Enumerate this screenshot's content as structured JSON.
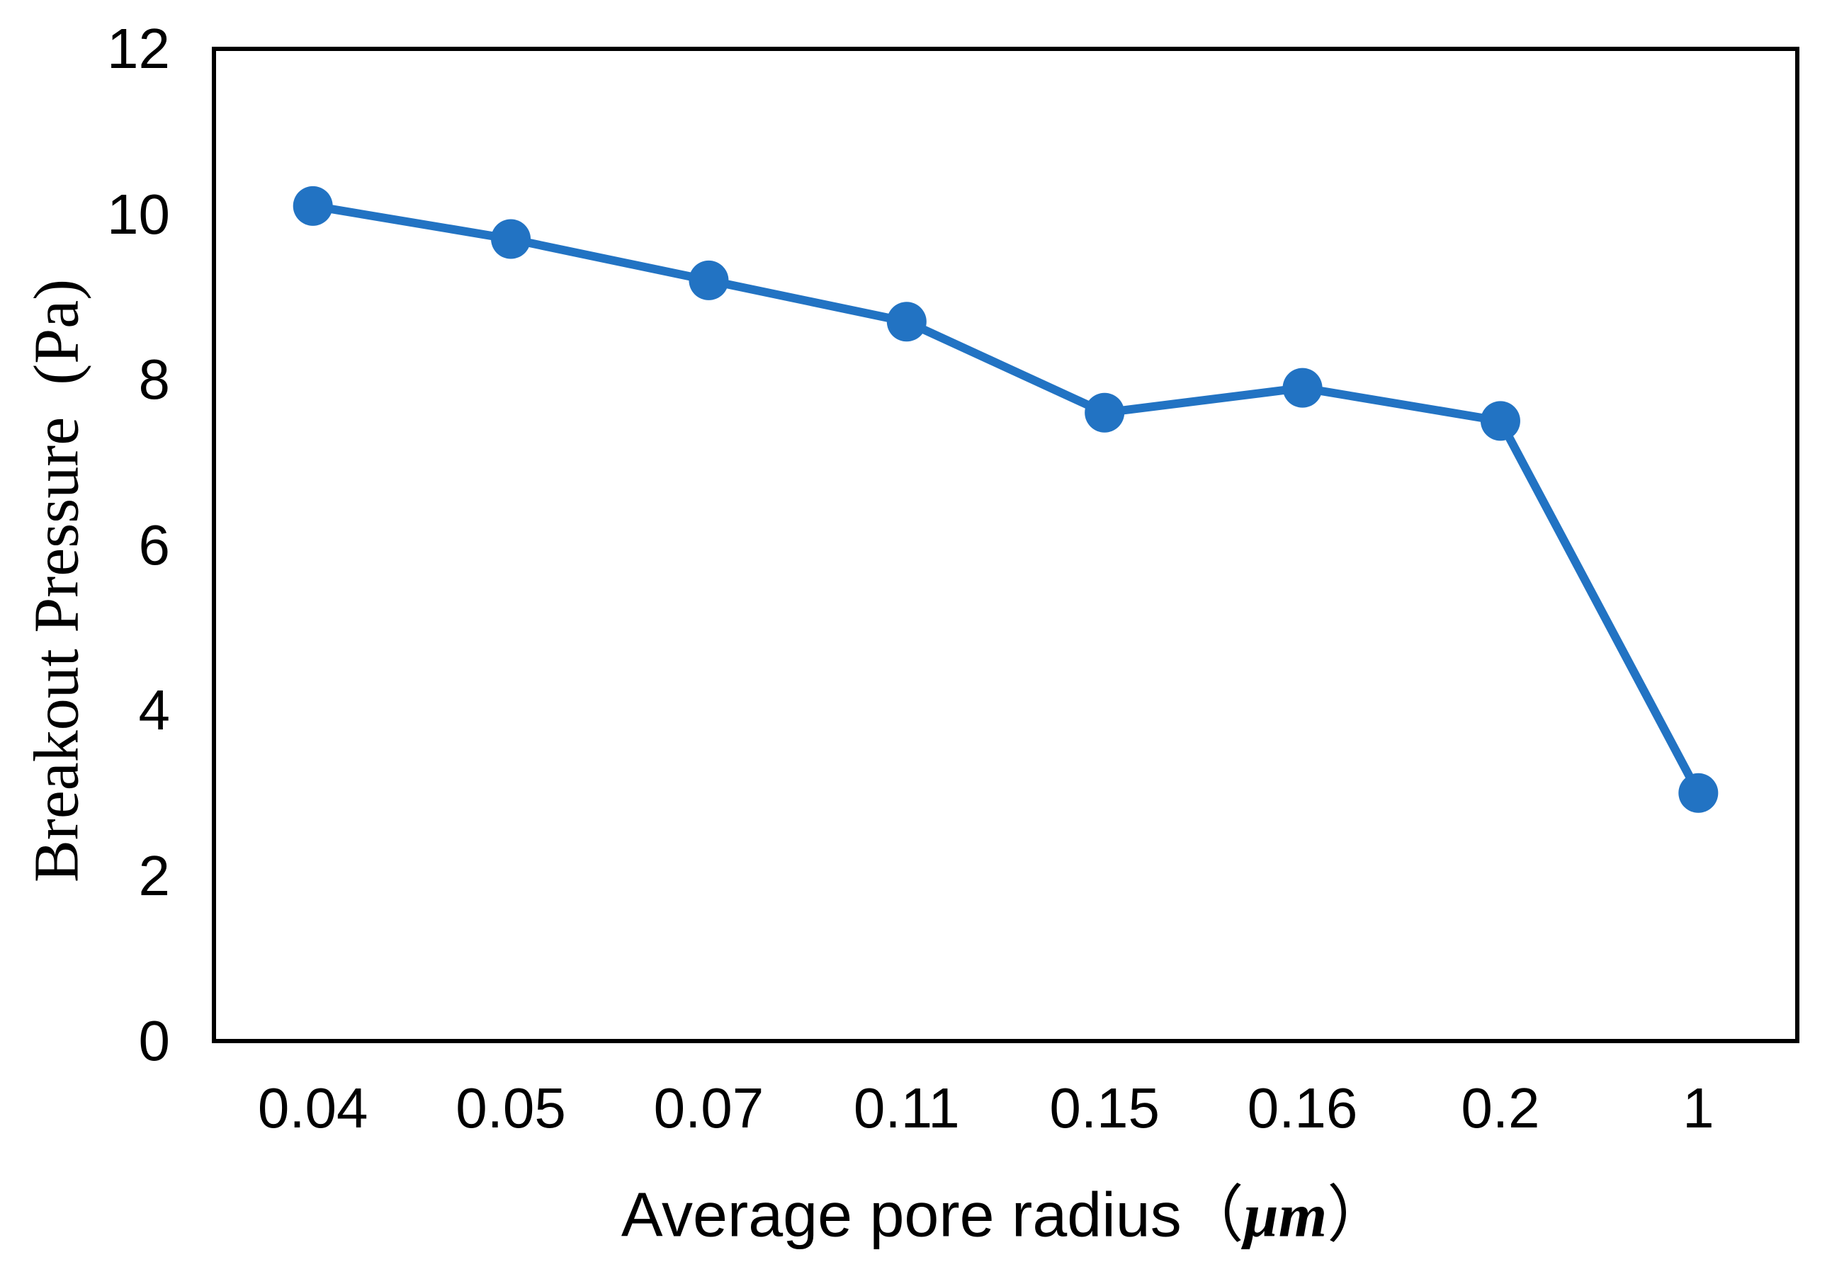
{
  "chart_data": {
    "type": "line",
    "title": "",
    "categories": [
      "0.04",
      "0.05",
      "0.07",
      "0.11",
      "0.15",
      "0.16",
      "0.2",
      "1"
    ],
    "series": [
      {
        "name": "Breakout Pressure",
        "values": [
          10.1,
          9.7,
          9.2,
          8.7,
          7.6,
          7.9,
          7.5,
          3.0
        ]
      }
    ],
    "xlabel": {
      "text": "Average pore radius",
      "unit_open": "（",
      "unit": "μm",
      "unit_close": "）"
    },
    "ylabel": "Breakout Pressure  (Pa)",
    "ylim": [
      0,
      12
    ],
    "y_ticks": [
      0,
      2,
      4,
      6,
      8,
      10,
      12
    ],
    "grid": false,
    "legend": "none",
    "marker": "circle",
    "line_color": "#2273C3",
    "axis_color": "#000000"
  }
}
